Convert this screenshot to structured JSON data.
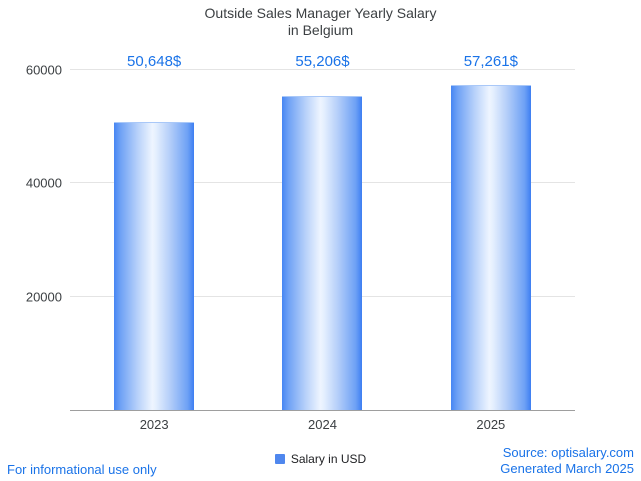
{
  "chart_data": {
    "type": "bar",
    "title": "Outside Sales Manager Yearly Salary\nin Belgium",
    "categories": [
      "2023",
      "2024",
      "2025"
    ],
    "series": [
      {
        "name": "Salary in USD",
        "values": [
          50648,
          55206,
          57261
        ]
      }
    ],
    "value_labels": [
      "50,648$",
      "55,206$",
      "57,261$"
    ],
    "xlabel": "",
    "ylabel": "",
    "ylim": [
      0,
      60000
    ],
    "yticks": [
      20000,
      40000,
      60000
    ],
    "ytick_labels": [
      "20000",
      "40000",
      "60000"
    ],
    "grid": true,
    "legend_position": "bottom"
  },
  "colors": {
    "bar_blue": "#4284f5",
    "bar_highlight": "#eef5ff",
    "annotation_blue": "#1a73e8",
    "footer_blue": "#1a73e8",
    "title_gray": "#3c4043",
    "gridline": "#e4e4e4",
    "axis_line": "#9e9e9e"
  },
  "footer": {
    "left": "For informational use only",
    "source": "Source: optisalary.com",
    "generated": "Generated March 2025"
  }
}
